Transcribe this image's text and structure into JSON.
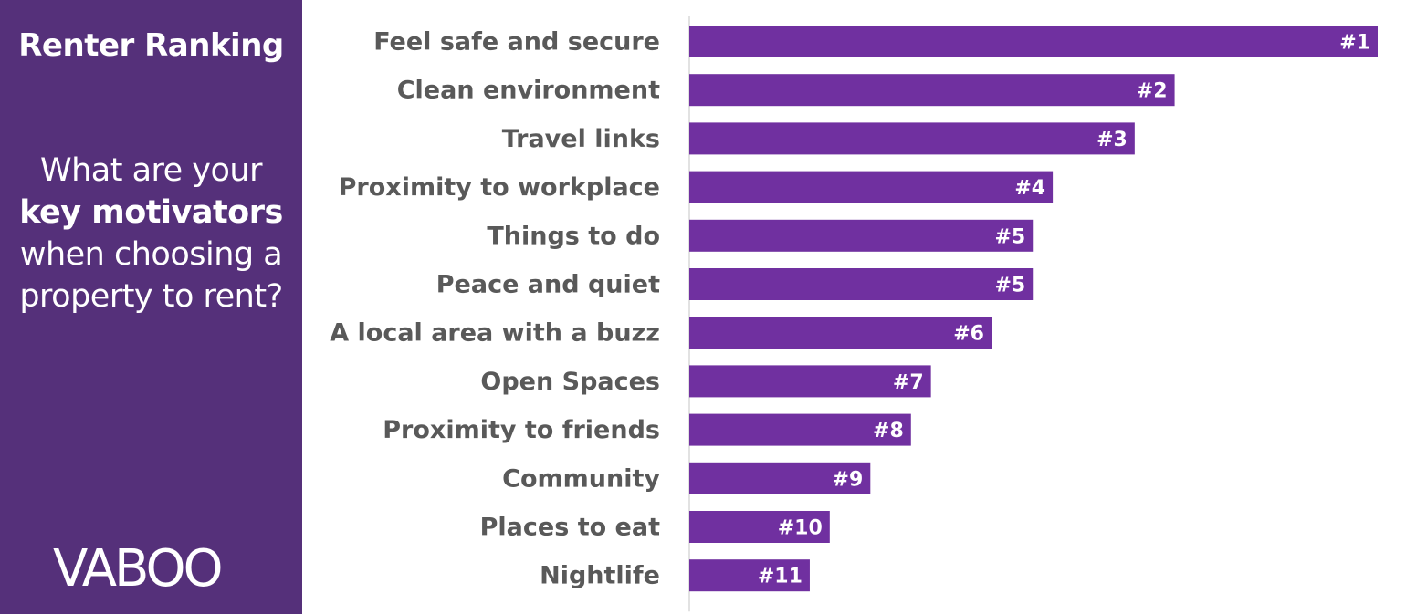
{
  "sidebar": {
    "heading": "Renter Ranking",
    "question_part1": "What are your ",
    "question_bold": "key motivators",
    "question_part2": " when choosing a property to rent?",
    "logo": "VABOO",
    "background_color": "#55307a"
  },
  "chart_data": {
    "type": "bar",
    "orientation": "horizontal",
    "bar_color": "#7030a0",
    "categories": [
      "Feel safe and secure",
      "Clean environment",
      "Travel links",
      "Proximity to workplace",
      "Things to do",
      "Peace and quiet",
      "A local area with a buzz",
      "Open Spaces",
      "Proximity to friends",
      "Community",
      "Places to eat",
      "Nightlife"
    ],
    "values": [
      100,
      70.5,
      64.7,
      52.8,
      49.9,
      49.9,
      43.9,
      35.1,
      32.2,
      26.3,
      20.4,
      17.5
    ],
    "data_labels": [
      "#1",
      "#2",
      "#3",
      "#4",
      "#5",
      "#5",
      "#6",
      "#7",
      "#8",
      "#9",
      "#10",
      "#11"
    ],
    "xlim": [
      0,
      100
    ],
    "grid": false,
    "legend": "none"
  }
}
